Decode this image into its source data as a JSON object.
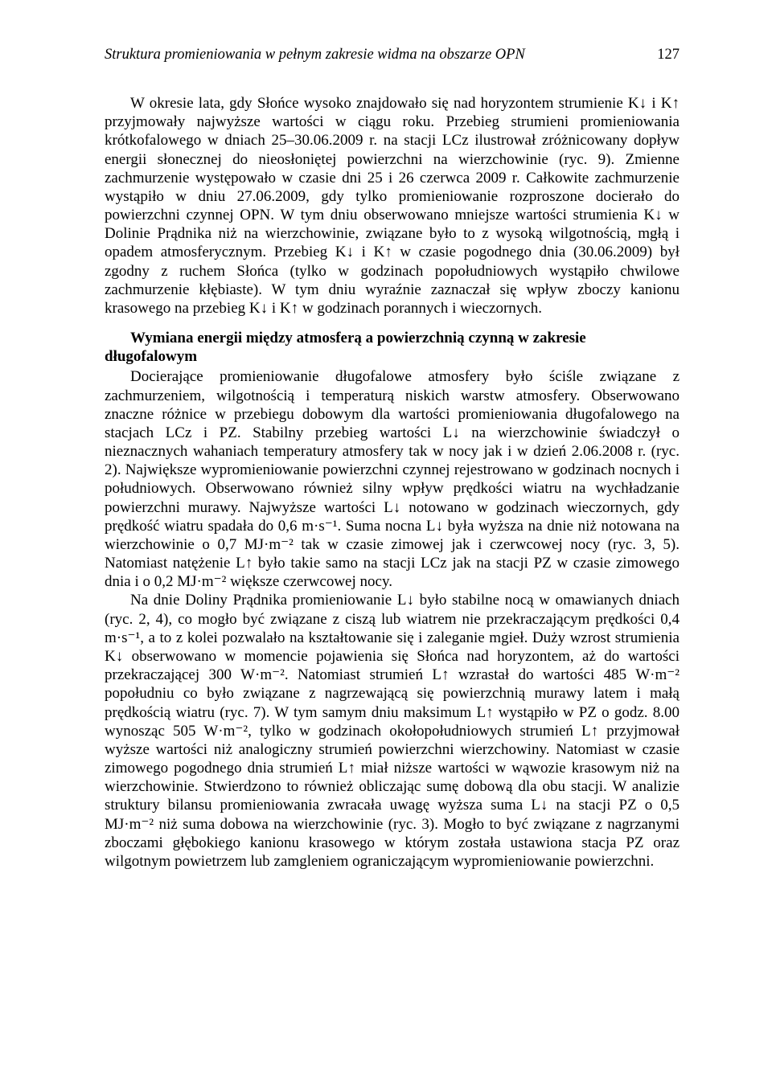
{
  "runningHead": {
    "title": "Struktura promieniowania w pełnym zakresie widma na obszarze OPN",
    "pageNumber": "127"
  },
  "para1": "W okresie lata, gdy Słońce wysoko znajdowało się nad horyzontem strumienie K↓ i K↑ przyjmowały najwyższe wartości w ciągu roku. Przebieg strumieni promieniowania krótkofalowego w dniach 25–30.06.2009 r. na stacji LCz ilustrował zróżnicowany dopływ energii słonecznej do nieosłoniętej powierzchni na wierzchowinie (ryc. 9). Zmienne zachmurzenie występowało w czasie dni 25 i 26 czerwca 2009 r. Całkowite zachmurzenie wystąpiło w dniu 27.06.2009, gdy tylko promieniowanie rozproszone docierało do powierzchni czynnej OPN. W tym dniu obserwowano mniejsze wartości strumienia K↓ w Dolinie Prądnika niż na wierzchowinie, związane było to z wysoką wilgotnością, mgłą i opadem atmosferycznym. Przebieg K↓ i K↑ w czasie pogodnego dnia (30.06.2009) był zgodny z ruchem Słońca (tylko w godzinach popołudniowych wystąpiło chwilowe zachmurzenie kłębiaste). W tym dniu wyraźnie zaznaczał się wpływ zboczy kanionu krasowego na przebieg K↓ i K↑ w godzinach porannych i wieczornych.",
  "sectionHeading": "Wymiana energii między atmosferą a powierzchnią czynną w zakresie długofalowym",
  "para2": "Docierające promieniowanie długofalowe atmosfery było ściśle związane z zachmurzeniem, wilgotnością i temperaturą niskich warstw atmosfery. Obserwowano znaczne różnice w przebiegu dobowym dla wartości promieniowania długofalowego na stacjach LCz i PZ. Stabilny przebieg wartości L↓ na wierzchowinie świadczył o nieznacznych wahaniach temperatury atmosfery tak w nocy jak i w dzień 2.06.2008 r. (ryc. 2). Największe wypromieniowanie powierzchni czynnej rejestrowano w godzinach nocnych i południowych. Obserwowano również silny wpływ prędkości wiatru na wychładzanie powierzchni murawy. Najwyższe wartości L↓ notowano w godzinach wieczornych, gdy prędkość wiatru spadała do 0,6 m·s⁻¹. Suma nocna L↓ była wyższa na dnie niż notowana na wierzchowinie o 0,7 MJ·m⁻² tak w czasie zimowej jak i czerwcowej nocy (ryc. 3, 5). Natomiast natężenie L↑ było takie samo na stacji LCz jak na stacji PZ w czasie zimowego dnia i o 0,2 MJ·m⁻² większe czerwcowej nocy.",
  "para3": "Na dnie Doliny Prądnika promieniowanie L↓ było stabilne nocą w omawianych dniach (ryc. 2, 4), co mogło być związane z ciszą lub wiatrem nie przekraczającym prędkości 0,4 m·s⁻¹, a to z kolei pozwalało na kształtowanie się i zaleganie mgieł. Duży wzrost strumienia K↓ obserwowano w momencie pojawienia się Słońca nad horyzontem, aż do wartości przekraczającej 300 W·m⁻². Natomiast strumień L↑ wzrastał do wartości 485 W·m⁻² popołudniu co było związane z nagrzewającą się powierzchnią murawy latem i małą prędkością wiatru (ryc. 7). W tym samym dniu maksimum L↑ wystąpiło w PZ o godz. 8.00 wynosząc 505 W·m⁻², tylko w godzinach okołopołudniowych strumień L↑ przyjmował wyższe wartości niż analogiczny strumień powierzchni wierzchowiny. Natomiast w czasie zimowego pogodnego dnia strumień L↑ miał niższe wartości w wąwozie krasowym niż na wierzchowinie. Stwierdzono to również obliczając sumę dobową dla obu stacji. W analizie struktury bilansu promieniowania zwracała uwagę wyższa suma L↓ na stacji PZ o 0,5 MJ·m⁻² niż suma dobowa na wierzchowinie (ryc. 3). Mogło to być związane z nagrzanymi zboczami głębokiego kanionu krasowego w którym została ustawiona stacja PZ oraz wilgotnym powietrzem lub zamgleniem ograniczającym wypromieniowanie powierzchni.",
  "colors": {
    "text": "#000000",
    "background": "#ffffff"
  },
  "typography": {
    "fontFamily": "Times New Roman",
    "bodyFontSizePx": 19,
    "lineHeight": 1.22,
    "runningHeadFontSizePx": 18.5
  },
  "layout": {
    "pageWidthPx": 960,
    "pageHeightPx": 1346,
    "indentPx": 32
  }
}
